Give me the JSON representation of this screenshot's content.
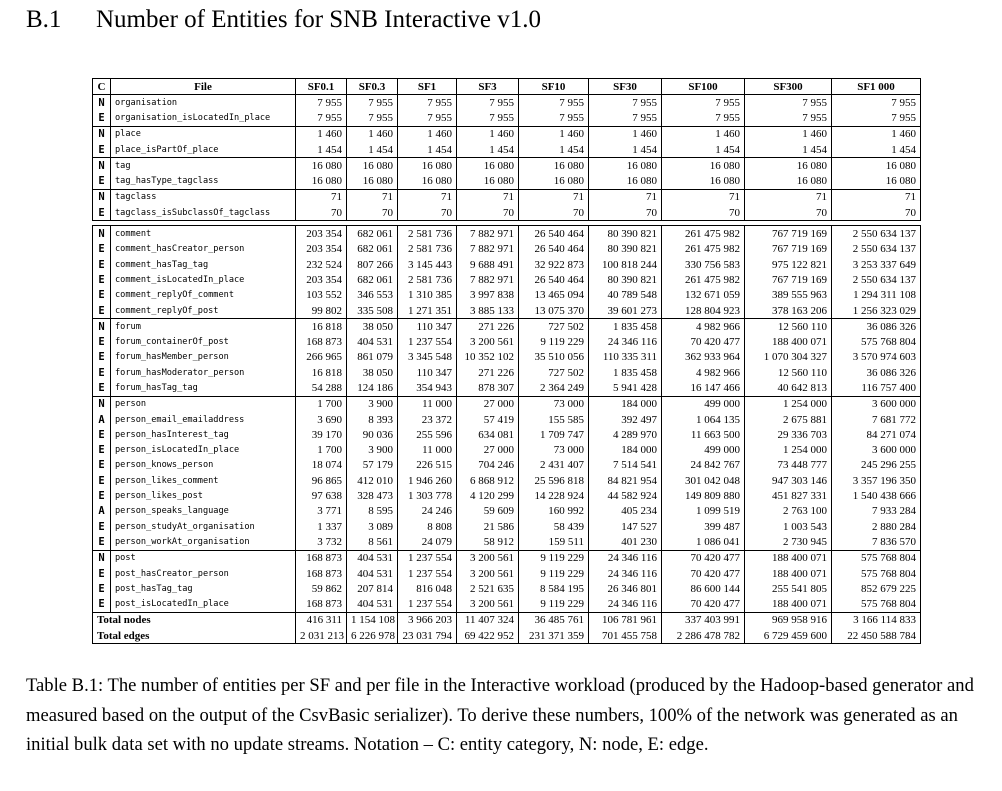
{
  "section": {
    "number": "B.1",
    "title": "Number of Entities for SNB Interactive v1.0"
  },
  "table": {
    "headers": [
      "C",
      "File",
      "SF0.1",
      "SF0.3",
      "SF1",
      "SF3",
      "SF10",
      "SF30",
      "SF100",
      "SF300",
      "SF1 000"
    ],
    "groups": [
      [
        [
          "N",
          "organisation",
          [
            "7 955",
            "7 955",
            "7 955",
            "7 955",
            "7 955",
            "7 955",
            "7 955",
            "7 955",
            "7 955"
          ]
        ],
        [
          "E",
          "organisation_isLocatedIn_place",
          [
            "7 955",
            "7 955",
            "7 955",
            "7 955",
            "7 955",
            "7 955",
            "7 955",
            "7 955",
            "7 955"
          ]
        ]
      ],
      [
        [
          "N",
          "place",
          [
            "1 460",
            "1 460",
            "1 460",
            "1 460",
            "1 460",
            "1 460",
            "1 460",
            "1 460",
            "1 460"
          ]
        ],
        [
          "E",
          "place_isPartOf_place",
          [
            "1 454",
            "1 454",
            "1 454",
            "1 454",
            "1 454",
            "1 454",
            "1 454",
            "1 454",
            "1 454"
          ]
        ]
      ],
      [
        [
          "N",
          "tag",
          [
            "16 080",
            "16 080",
            "16 080",
            "16 080",
            "16 080",
            "16 080",
            "16 080",
            "16 080",
            "16 080"
          ]
        ],
        [
          "E",
          "tag_hasType_tagclass",
          [
            "16 080",
            "16 080",
            "16 080",
            "16 080",
            "16 080",
            "16 080",
            "16 080",
            "16 080",
            "16 080"
          ]
        ]
      ],
      [
        [
          "N",
          "tagclass",
          [
            "71",
            "71",
            "71",
            "71",
            "71",
            "71",
            "71",
            "71",
            "71"
          ]
        ],
        [
          "E",
          "tagclass_isSubclassOf_tagclass",
          [
            "70",
            "70",
            "70",
            "70",
            "70",
            "70",
            "70",
            "70",
            "70"
          ]
        ]
      ],
      "sep",
      [
        [
          "N",
          "comment",
          [
            "203 354",
            "682 061",
            "2 581 736",
            "7 882 971",
            "26 540 464",
            "80 390 821",
            "261 475 982",
            "767 719 169",
            "2 550 634 137"
          ]
        ],
        [
          "E",
          "comment_hasCreator_person",
          [
            "203 354",
            "682 061",
            "2 581 736",
            "7 882 971",
            "26 540 464",
            "80 390 821",
            "261 475 982",
            "767 719 169",
            "2 550 634 137"
          ]
        ],
        [
          "E",
          "comment_hasTag_tag",
          [
            "232 524",
            "807 266",
            "3 145 443",
            "9 688 491",
            "32 922 873",
            "100 818 244",
            "330 756 583",
            "975 122 821",
            "3 253 337 649"
          ]
        ],
        [
          "E",
          "comment_isLocatedIn_place",
          [
            "203 354",
            "682 061",
            "2 581 736",
            "7 882 971",
            "26 540 464",
            "80 390 821",
            "261 475 982",
            "767 719 169",
            "2 550 634 137"
          ]
        ],
        [
          "E",
          "comment_replyOf_comment",
          [
            "103 552",
            "346 553",
            "1 310 385",
            "3 997 838",
            "13 465 094",
            "40 789 548",
            "132 671 059",
            "389 555 963",
            "1 294 311 108"
          ]
        ],
        [
          "E",
          "comment_replyOf_post",
          [
            "99 802",
            "335 508",
            "1 271 351",
            "3 885 133",
            "13 075 370",
            "39 601 273",
            "128 804 923",
            "378 163 206",
            "1 256 323 029"
          ]
        ]
      ],
      [
        [
          "N",
          "forum",
          [
            "16 818",
            "38 050",
            "110 347",
            "271 226",
            "727 502",
            "1 835 458",
            "4 982 966",
            "12 560 110",
            "36 086 326"
          ]
        ],
        [
          "E",
          "forum_containerOf_post",
          [
            "168 873",
            "404 531",
            "1 237 554",
            "3 200 561",
            "9 119 229",
            "24 346 116",
            "70 420 477",
            "188 400 071",
            "575 768 804"
          ]
        ],
        [
          "E",
          "forum_hasMember_person",
          [
            "266 965",
            "861 079",
            "3 345 548",
            "10 352 102",
            "35 510 056",
            "110 335 311",
            "362 933 964",
            "1 070 304 327",
            "3 570 974 603"
          ]
        ],
        [
          "E",
          "forum_hasModerator_person",
          [
            "16 818",
            "38 050",
            "110 347",
            "271 226",
            "727 502",
            "1 835 458",
            "4 982 966",
            "12 560 110",
            "36 086 326"
          ]
        ],
        [
          "E",
          "forum_hasTag_tag",
          [
            "54 288",
            "124 186",
            "354 943",
            "878 307",
            "2 364 249",
            "5 941 428",
            "16 147 466",
            "40 642 813",
            "116 757 400"
          ]
        ]
      ],
      [
        [
          "N",
          "person",
          [
            "1 700",
            "3 900",
            "11 000",
            "27 000",
            "73 000",
            "184 000",
            "499 000",
            "1 254 000",
            "3 600 000"
          ]
        ],
        [
          "A",
          "person_email_emailaddress",
          [
            "3 690",
            "8 393",
            "23 372",
            "57 419",
            "155 585",
            "392 497",
            "1 064 135",
            "2 675 881",
            "7 681 772"
          ]
        ],
        [
          "E",
          "person_hasInterest_tag",
          [
            "39 170",
            "90 036",
            "255 596",
            "634 081",
            "1 709 747",
            "4 289 970",
            "11 663 500",
            "29 336 703",
            "84 271 074"
          ]
        ],
        [
          "E",
          "person_isLocatedIn_place",
          [
            "1 700",
            "3 900",
            "11 000",
            "27 000",
            "73 000",
            "184 000",
            "499 000",
            "1 254 000",
            "3 600 000"
          ]
        ],
        [
          "E",
          "person_knows_person",
          [
            "18 074",
            "57 179",
            "226 515",
            "704 246",
            "2 431 407",
            "7 514 541",
            "24 842 767",
            "73 448 777",
            "245 296 255"
          ]
        ],
        [
          "E",
          "person_likes_comment",
          [
            "96 865",
            "412 010",
            "1 946 260",
            "6 868 912",
            "25 596 818",
            "84 821 954",
            "301 042 048",
            "947 303 146",
            "3 357 196 350"
          ]
        ],
        [
          "E",
          "person_likes_post",
          [
            "97 638",
            "328 473",
            "1 303 778",
            "4 120 299",
            "14 228 924",
            "44 582 924",
            "149 809 880",
            "451 827 331",
            "1 540 438 666"
          ]
        ],
        [
          "A",
          "person_speaks_language",
          [
            "3 771",
            "8 595",
            "24 246",
            "59 609",
            "160 992",
            "405 234",
            "1 099 519",
            "2 763 100",
            "7 933 284"
          ]
        ],
        [
          "E",
          "person_studyAt_organisation",
          [
            "1 337",
            "3 089",
            "8 808",
            "21 586",
            "58 439",
            "147 527",
            "399 487",
            "1 003 543",
            "2 880 284"
          ]
        ],
        [
          "E",
          "person_workAt_organisation",
          [
            "3 732",
            "8 561",
            "24 079",
            "58 912",
            "159 511",
            "401 230",
            "1 086 041",
            "2 730 945",
            "7 836 570"
          ]
        ]
      ],
      [
        [
          "N",
          "post",
          [
            "168 873",
            "404 531",
            "1 237 554",
            "3 200 561",
            "9 119 229",
            "24 346 116",
            "70 420 477",
            "188 400 071",
            "575 768 804"
          ]
        ],
        [
          "E",
          "post_hasCreator_person",
          [
            "168 873",
            "404 531",
            "1 237 554",
            "3 200 561",
            "9 119 229",
            "24 346 116",
            "70 420 477",
            "188 400 071",
            "575 768 804"
          ]
        ],
        [
          "E",
          "post_hasTag_tag",
          [
            "59 862",
            "207 814",
            "816 048",
            "2 521 635",
            "8 584 195",
            "26 346 801",
            "86 600 144",
            "255 541 805",
            "852 679 225"
          ]
        ],
        [
          "E",
          "post_isLocatedIn_place",
          [
            "168 873",
            "404 531",
            "1 237 554",
            "3 200 561",
            "9 119 229",
            "24 346 116",
            "70 420 477",
            "188 400 071",
            "575 768 804"
          ]
        ]
      ],
      [
        [
          "",
          "Total nodes",
          [
            "416 311",
            "1 154 108",
            "3 966 203",
            "11 407 324",
            "36 485 761",
            "106 781 961",
            "337 403 991",
            "969 958 916",
            "3 166 114 833"
          ]
        ],
        [
          "",
          "Total edges",
          [
            "2 031 213",
            "6 226 978",
            "23 031 794",
            "69 422 952",
            "231 371 359",
            "701 455 758",
            "2 286 478 782",
            "6 729 459 600",
            "22 450 588 784"
          ]
        ]
      ]
    ]
  },
  "caption": "Table B.1: The number of entities per SF and per file in the Interactive workload (produced by the Hadoop-based generator and measured based on the output of the CsvBasic serializer). To derive these numbers, 100% of the network was generated as an initial bulk data set with no update streams. Notation – C: entity category, N: node, E: edge."
}
